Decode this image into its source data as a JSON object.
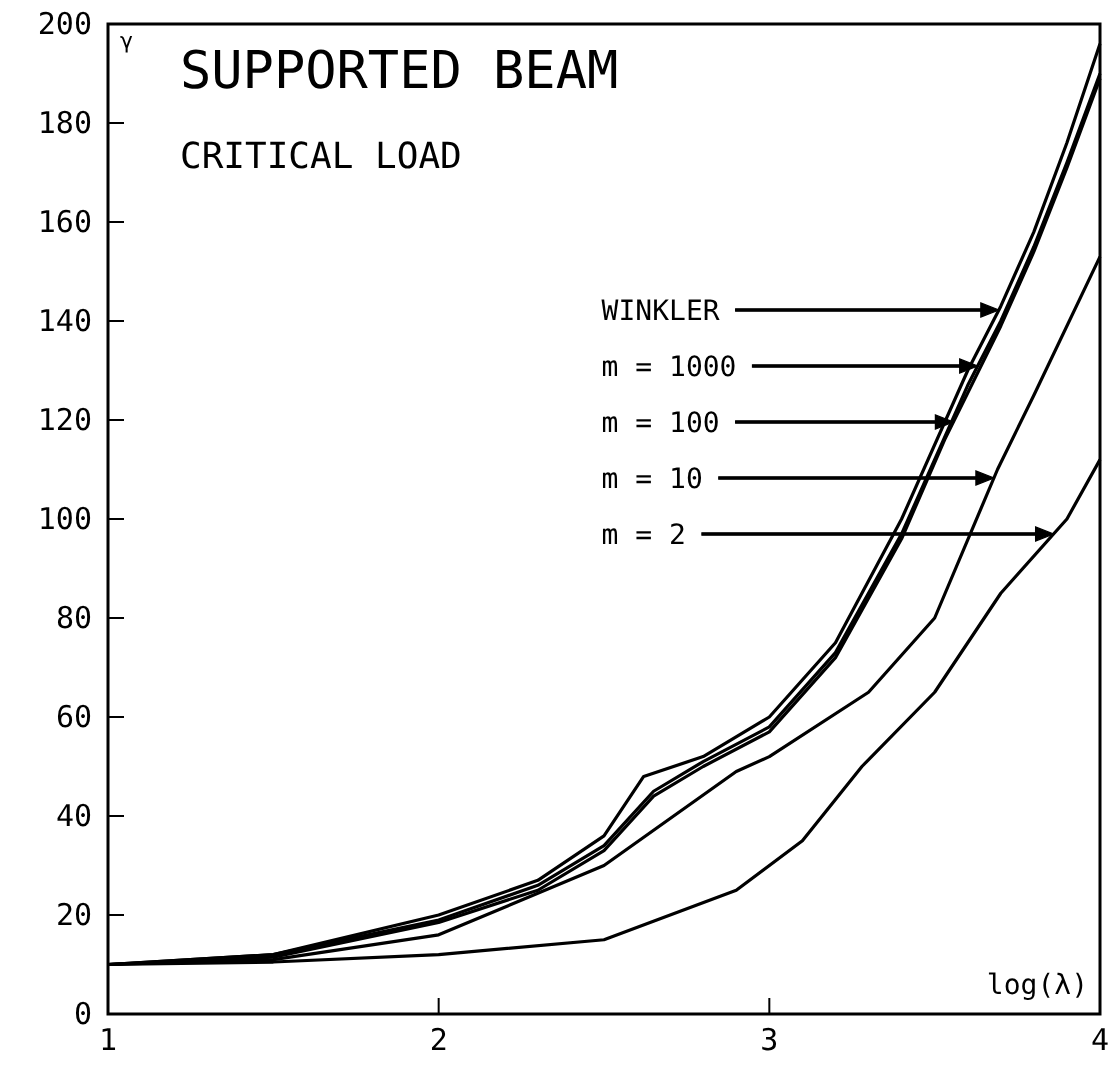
{
  "chart_data": {
    "type": "line",
    "title": "SUPPORTED BEAM",
    "subtitle": "CRITICAL LOAD",
    "xlabel": "log(λ)",
    "ylabel": "γ",
    "xlim": [
      1,
      4
    ],
    "ylim": [
      0,
      200
    ],
    "xticks": [
      1,
      2,
      3,
      4
    ],
    "yticks": [
      0,
      20,
      40,
      60,
      80,
      100,
      120,
      140,
      160,
      180,
      200
    ],
    "grid": false,
    "marker": "none",
    "line_style": "solid",
    "series": [
      {
        "color": "#000000",
        "x": [
          1,
          1.5,
          2,
          2.3,
          2.5,
          2.62,
          2.8,
          3.0,
          3.2,
          3.4,
          3.6,
          3.7,
          3.8,
          3.9,
          4.0
        ],
        "values": [
          10,
          12,
          20,
          27,
          36,
          48,
          52,
          60,
          75,
          100,
          130,
          143,
          158,
          176,
          196
        ]
      },
      {
        "color": "#000000",
        "x": [
          1,
          1.5,
          2,
          2.3,
          2.5,
          2.65,
          2.8,
          3.0,
          3.2,
          3.4,
          3.6,
          3.7,
          3.8,
          3.9,
          4.0
        ],
        "values": [
          10,
          12,
          19,
          26,
          34,
          45,
          51,
          58,
          73,
          97,
          127,
          140,
          155,
          172,
          190
        ]
      },
      {
        "color": "#000000",
        "x": [
          1,
          1.5,
          2,
          2.3,
          2.5,
          2.65,
          2.8,
          3.0,
          3.2,
          3.4,
          3.53,
          3.7,
          3.8,
          3.9,
          4.0
        ],
        "values": [
          10,
          11.5,
          18.5,
          25,
          33,
          44,
          50,
          57,
          72,
          96,
          116,
          139,
          154,
          171,
          189
        ]
      },
      {
        "color": "#000000",
        "x": [
          1,
          1.5,
          2,
          2.5,
          2.9,
          3.0,
          3.3,
          3.5,
          3.69,
          3.8,
          4.0
        ],
        "values": [
          10,
          11,
          16,
          30,
          49,
          52,
          65,
          80,
          110,
          125,
          153
        ]
      },
      {
        "color": "#000000",
        "x": [
          1,
          1.5,
          2,
          2.5,
          2.9,
          3.1,
          3.28,
          3.5,
          3.7,
          3.9,
          4.0
        ],
        "values": [
          10,
          10.5,
          12,
          15,
          25,
          35,
          50,
          65,
          85,
          100,
          112
        ]
      }
    ],
    "annotations": [
      "WINKLER",
      "m = 1000",
      "m = 100",
      "m = 10",
      "m = 2"
    ]
  }
}
